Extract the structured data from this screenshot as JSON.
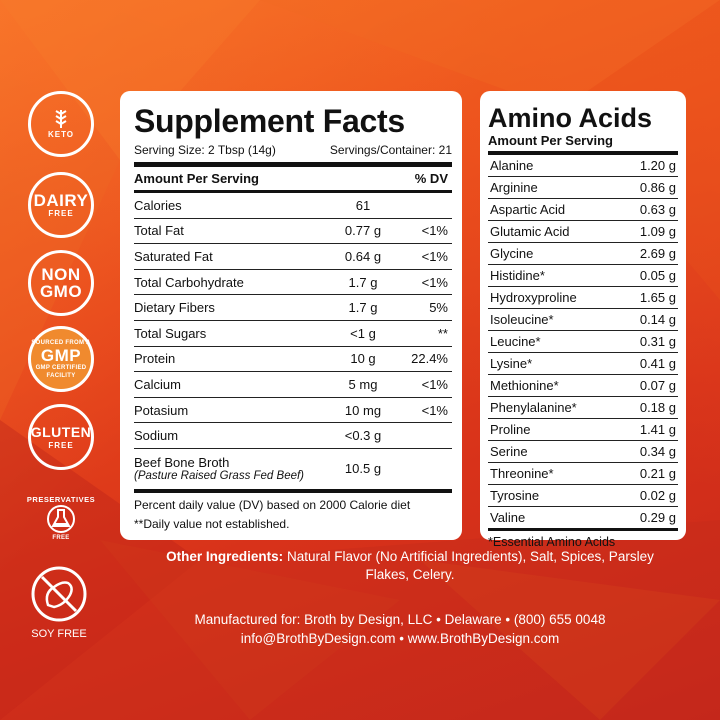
{
  "badges": {
    "keto": "KETO",
    "dairy_big": "DAIRY",
    "dairy_small": "FREE",
    "non": "NON",
    "gmo": "GMO",
    "gmp": "GMP",
    "gmp_top": "SOURCED FROM A",
    "gmp_bottom": "GMP CERTIFIED FACILITY",
    "gluten_big": "GLUTEN",
    "gluten_small": "FREE",
    "preservatives_top": "PRESERVATIVES",
    "preservatives_bottom": "FREE",
    "soy": "SOY FREE"
  },
  "supplement_facts": {
    "title": "Supplement Facts",
    "serving_size": "Serving Size: 2 Tbsp (14g)",
    "servings_container": "Servings/Container: 21",
    "header_amount": "Amount Per Serving",
    "header_dv": "% DV",
    "rows": [
      {
        "name": "Calories",
        "amount": "61",
        "dv": ""
      },
      {
        "name": "Total Fat",
        "amount": "0.77 g",
        "dv": "<1%"
      },
      {
        "name": "Saturated Fat",
        "amount": "0.64 g",
        "dv": "<1%"
      },
      {
        "name": "Total Carbohydrate",
        "amount": "1.7 g",
        "dv": "<1%"
      },
      {
        "name": "Dietary Fibers",
        "amount": "1.7 g",
        "dv": "5%"
      },
      {
        "name": "Total Sugars",
        "amount": "<1 g",
        "dv": "**"
      },
      {
        "name": "Protein",
        "amount": "10 g",
        "dv": "22.4%"
      },
      {
        "name": "Calcium",
        "amount": "5 mg",
        "dv": "<1%"
      },
      {
        "name": "Potasium",
        "amount": "10 mg",
        "dv": "<1%"
      },
      {
        "name": "Sodium",
        "amount": "<0.3 g",
        "dv": ""
      }
    ],
    "broth_name": "Beef Bone Broth",
    "broth_sub": "(Pasture Raised Grass Fed Beef)",
    "broth_amount": "10.5 g",
    "footnote_1": "Percent daily value (DV) based on 2000 Calorie diet",
    "footnote_2": "**Daily value not established."
  },
  "amino_acids": {
    "title": "Amino Acids",
    "subtitle": "Amount Per Serving",
    "rows": [
      {
        "name": "Alanine",
        "amount": "1.20 g"
      },
      {
        "name": "Arginine",
        "amount": "0.86 g"
      },
      {
        "name": "Aspartic Acid",
        "amount": "0.63 g"
      },
      {
        "name": "Glutamic Acid",
        "amount": "1.09 g"
      },
      {
        "name": "Glycine",
        "amount": "2.69 g"
      },
      {
        "name": "Histidine*",
        "amount": "0.05 g"
      },
      {
        "name": "Hydroxyproline",
        "amount": "1.65 g"
      },
      {
        "name": "Isoleucine*",
        "amount": "0.14 g"
      },
      {
        "name": "Leucine*",
        "amount": "0.31 g"
      },
      {
        "name": "Lysine*",
        "amount": "0.41 g"
      },
      {
        "name": "Methionine*",
        "amount": "0.07 g"
      },
      {
        "name": "Phenylalanine*",
        "amount": "0.18 g"
      },
      {
        "name": "Proline",
        "amount": "1.41 g"
      },
      {
        "name": "Serine",
        "amount": "0.34 g"
      },
      {
        "name": "Threonine*",
        "amount": "0.21 g"
      },
      {
        "name": "Tyrosine",
        "amount": "0.02 g"
      },
      {
        "name": "Valine",
        "amount": "0.29 g"
      }
    ],
    "footnote": "*Essential Amino Acids"
  },
  "other_ingredients": {
    "label": "Other Ingredients:",
    "text": " Natural Flavor (No Artificial Ingredients), Salt, Spices, Parsley Flakes, Celery."
  },
  "manufacturer": {
    "line1": "Manufactured for: Broth by Design, LLC • Delaware • (800) 655 0048",
    "line2": "info@BrothByDesign.com • www.BrothByDesign.com"
  }
}
